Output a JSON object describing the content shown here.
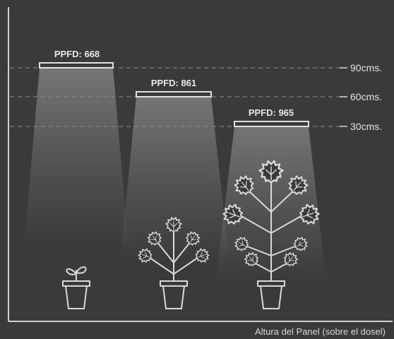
{
  "lamps": [
    {
      "id": "lamp-1",
      "label": "PPFD: 668"
    },
    {
      "id": "lamp-2",
      "label": "PPFD: 861"
    },
    {
      "id": "lamp-3",
      "label": "PPFD: 965"
    }
  ],
  "heights": [
    {
      "id": "height-90",
      "label": "90cms."
    },
    {
      "id": "height-60",
      "label": "60cms."
    },
    {
      "id": "height-30",
      "label": "30cms."
    }
  ],
  "axis": {
    "caption": "Altura del Panel (sobre el dosel)"
  },
  "plants": [
    {
      "id": "seedling",
      "stage": "seedling"
    },
    {
      "id": "young-plant",
      "stage": "vegetative"
    },
    {
      "id": "mature-plant",
      "stage": "mature"
    }
  ],
  "colors": {
    "background": "#3a3a3a",
    "line": "#d9d9d9",
    "light": "#ffffff"
  }
}
